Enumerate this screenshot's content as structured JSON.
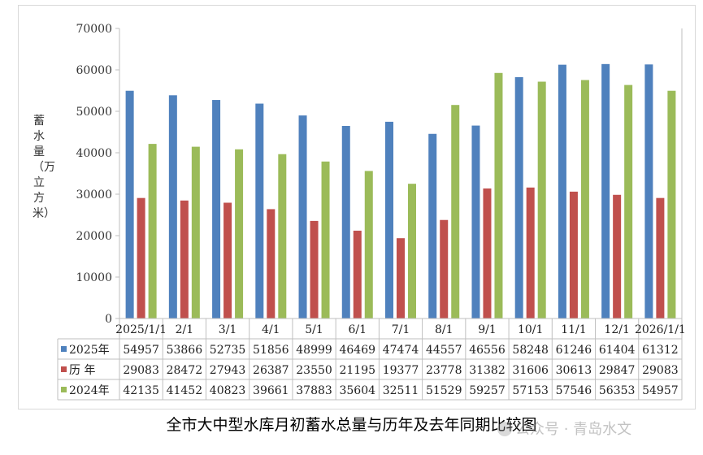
{
  "chart_data": {
    "type": "bar",
    "title": "全市大中型水库月初蓄水总量与历年及去年同期比较图",
    "ylabel": "蓄水量（万立方米）",
    "ylim": [
      0,
      70000
    ],
    "yticks": [
      0,
      10000,
      20000,
      30000,
      40000,
      50000,
      60000,
      70000
    ],
    "grid": false,
    "legend": "data-table",
    "categories": [
      "2025/1/1",
      "2/1",
      "3/1",
      "4/1",
      "5/1",
      "6/1",
      "7/1",
      "8/1",
      "9/1",
      "10/1",
      "11/1",
      "12/1",
      "2026/1/1"
    ],
    "series": [
      {
        "name": "2025年",
        "color": "#4f81bd",
        "values": [
          54957,
          53866,
          52735,
          51856,
          48999,
          46469,
          47474,
          44557,
          46556,
          58248,
          61246,
          61404,
          61312
        ]
      },
      {
        "name": "历 年",
        "color": "#c0504d",
        "values": [
          29083,
          28472,
          27943,
          26387,
          23550,
          21195,
          19377,
          23778,
          31382,
          31606,
          30613,
          29847,
          29083
        ]
      },
      {
        "name": "2024年",
        "color": "#9bbb59",
        "values": [
          42135,
          41452,
          40823,
          39661,
          37883,
          35604,
          32511,
          51529,
          59257,
          57153,
          57546,
          56353,
          54957
        ]
      }
    ]
  },
  "caption": "全市大中型水库月初蓄水总量与历年及去年同期比较图",
  "watermark": "公众号 · 青岛水文"
}
